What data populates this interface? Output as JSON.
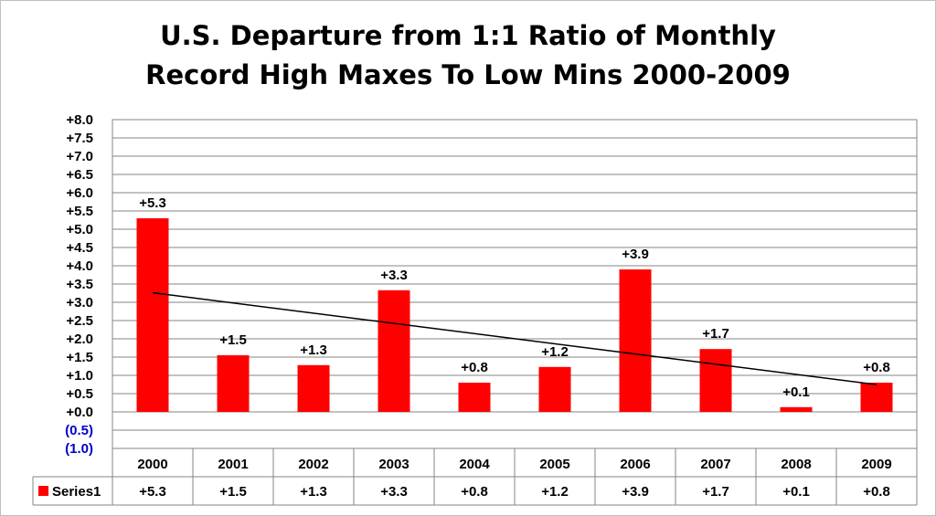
{
  "chart_data": {
    "type": "bar",
    "title_lines": [
      "U.S. Departure from 1:1 Ratio of Monthly",
      "Record High Maxes To Low Mins 2000-2009"
    ],
    "categories": [
      "2000",
      "2001",
      "2002",
      "2003",
      "2004",
      "2005",
      "2006",
      "2007",
      "2008",
      "2009"
    ],
    "series": [
      {
        "name": "Series1",
        "values": [
          5.3,
          1.55,
          1.28,
          3.33,
          0.8,
          1.23,
          3.9,
          1.72,
          0.13,
          0.8
        ],
        "labels": [
          "+5.3",
          "+1.5",
          "+1.3",
          "+3.3",
          "+0.8",
          "+1.2",
          "+3.9",
          "+1.7",
          "+0.1",
          "+0.8"
        ],
        "color": "#ff0000"
      }
    ],
    "trendline": {
      "type": "linear",
      "color": "#000000"
    },
    "ylim": [
      -1.0,
      8.0
    ],
    "y_ticks": [
      {
        "value": 8.0,
        "label": "+8.0"
      },
      {
        "value": 7.5,
        "label": "+7.5"
      },
      {
        "value": 7.0,
        "label": "+7.0"
      },
      {
        "value": 6.5,
        "label": "+6.5"
      },
      {
        "value": 6.0,
        "label": "+6.0"
      },
      {
        "value": 5.5,
        "label": "+5.5"
      },
      {
        "value": 5.0,
        "label": "+5.0"
      },
      {
        "value": 4.5,
        "label": "+4.5"
      },
      {
        "value": 4.0,
        "label": "+4.0"
      },
      {
        "value": 3.5,
        "label": "+3.5"
      },
      {
        "value": 3.0,
        "label": "+3.0"
      },
      {
        "value": 2.5,
        "label": "+2.5"
      },
      {
        "value": 2.0,
        "label": "+2.0"
      },
      {
        "value": 1.5,
        "label": "+1.5"
      },
      {
        "value": 1.0,
        "label": "+1.0"
      },
      {
        "value": 0.5,
        "label": "+0.5"
      },
      {
        "value": 0.0,
        "label": "+0.0"
      },
      {
        "value": -0.5,
        "label": "(0.5)"
      },
      {
        "value": -1.0,
        "label": "(1.0)"
      }
    ],
    "negative_tick_color": "#0000cc",
    "grid": true,
    "legend": "data-table",
    "data_table": true
  }
}
